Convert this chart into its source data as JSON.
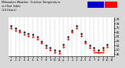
{
  "title": "Milwaukee Weather  Outdoor Temperature",
  "title2": "vs Heat Index",
  "title3": "(24 Hours)",
  "bg_color": "#d8d8d8",
  "plot_bg_color": "#ffffff",
  "temp_dots": [
    [
      0,
      72
    ],
    [
      1,
      70
    ],
    [
      2,
      68
    ],
    [
      3,
      66
    ],
    [
      4,
      65
    ],
    [
      5,
      64
    ],
    [
      6,
      62
    ],
    [
      7,
      58
    ],
    [
      8,
      54
    ],
    [
      9,
      52
    ],
    [
      10,
      50
    ],
    [
      11,
      49
    ],
    [
      12,
      55
    ],
    [
      13,
      62
    ],
    [
      14,
      68
    ],
    [
      15,
      72
    ],
    [
      16,
      65
    ],
    [
      17,
      58
    ],
    [
      18,
      54
    ],
    [
      19,
      52
    ],
    [
      20,
      50
    ],
    [
      21,
      52
    ],
    [
      22,
      55
    ]
  ],
  "heat_dots": [
    [
      0,
      70
    ],
    [
      1,
      68
    ],
    [
      2,
      66
    ],
    [
      3,
      64
    ],
    [
      4,
      63
    ],
    [
      5,
      62
    ],
    [
      6,
      60
    ],
    [
      7,
      56
    ],
    [
      8,
      52
    ],
    [
      9,
      50
    ],
    [
      10,
      48
    ],
    [
      11,
      47
    ],
    [
      12,
      53
    ],
    [
      13,
      60
    ],
    [
      14,
      66
    ],
    [
      15,
      70
    ],
    [
      16,
      63
    ],
    [
      17,
      56
    ],
    [
      18,
      52
    ],
    [
      19,
      50
    ],
    [
      20,
      48
    ],
    [
      21,
      50
    ],
    [
      22,
      53
    ]
  ],
  "heat_line_x": [
    19,
    21
  ],
  "heat_line_y": [
    48,
    48
  ],
  "temp_dot_color": "#000000",
  "heat_dot_color": "#ff0000",
  "heat_line_color": "#ff0000",
  "legend_blue_color": "#0000cc",
  "legend_red_color": "#ff0000",
  "grid_color": "#aaaaaa",
  "ylim": [
    44,
    80
  ],
  "y_ticks": [
    46,
    50,
    54,
    58,
    62,
    66,
    70,
    74,
    78
  ],
  "y_tick_labels": [
    "46",
    "50",
    "54",
    "58",
    "62",
    "66",
    "70",
    "74",
    "78"
  ],
  "x_ticks": [
    0,
    1,
    2,
    3,
    4,
    5,
    6,
    7,
    8,
    9,
    10,
    11,
    12,
    13,
    14,
    15,
    16,
    17,
    18,
    19,
    20,
    21,
    22,
    23
  ],
  "x_tick_labels": [
    "a",
    "1",
    "2",
    "3",
    "4",
    "5",
    "6",
    "7",
    "8",
    "9",
    "10",
    "11",
    "p",
    "1",
    "2",
    "3",
    "4",
    "5",
    "6",
    "7",
    "8",
    "9",
    "10",
    "11"
  ],
  "marker_size": 1.5,
  "dpi": 100
}
